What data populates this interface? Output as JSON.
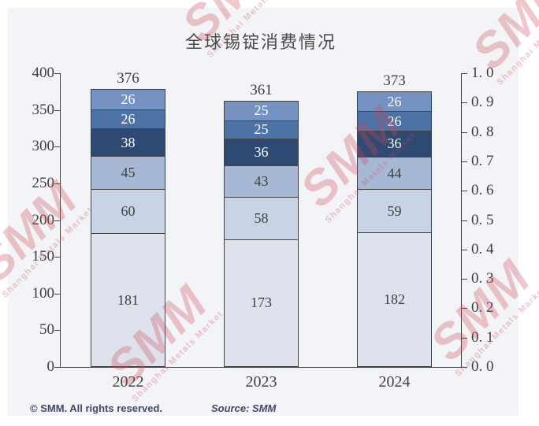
{
  "title": "全球锡锭消费情况",
  "chart_data": {
    "type": "bar",
    "subtype": "stacked",
    "title": "全球锡锭消费情况",
    "categories": [
      "2022",
      "2023",
      "2024"
    ],
    "series": [
      {
        "name": "layer-1-bottom",
        "values": [
          181,
          173,
          182
        ],
        "color": "#dde2ed",
        "text_color": "#3f3f3f"
      },
      {
        "name": "layer-2",
        "values": [
          60,
          58,
          59
        ],
        "color": "#c8d3e5",
        "text_color": "#3f3f3f"
      },
      {
        "name": "layer-3",
        "values": [
          45,
          43,
          44
        ],
        "color": "#a6b8d4",
        "text_color": "#3f3f3f"
      },
      {
        "name": "layer-4",
        "values": [
          38,
          36,
          36
        ],
        "color": "#2e4a73",
        "text_color": "#ffffff"
      },
      {
        "name": "layer-5",
        "values": [
          26,
          25,
          26
        ],
        "color": "#4d72a6",
        "text_color": "#ffffff"
      },
      {
        "name": "layer-6-top",
        "values": [
          26,
          25,
          26
        ],
        "color": "#7593c2",
        "text_color": "#ffffff"
      }
    ],
    "totals": [
      "376",
      "361",
      "373"
    ],
    "left_axis": {
      "min": 0,
      "max": 400,
      "ticks": [
        "400",
        "350",
        "300",
        "250",
        "200",
        "150",
        "100",
        "50",
        "0"
      ]
    },
    "right_axis": {
      "min": 0.0,
      "max": 1.0,
      "ticks": [
        "1. 0",
        "0. 9",
        "0. 8",
        "0. 7",
        "0. 6",
        "0. 5",
        "0. 4",
        "0. 3",
        "0. 2",
        "0. 1",
        "0. 0"
      ]
    },
    "grid": false,
    "legend": "none"
  },
  "footer": {
    "copyright": "© SMM. All rights reserved.",
    "source": "Source: SMM"
  },
  "watermark": {
    "big": "SMM",
    "small": "Shanghai Metals Market",
    "color": "#cd4854"
  },
  "colors": {
    "panel_background": "#f2f4f7",
    "axis": "#3f3f3f",
    "segment_border": "#424242",
    "footer_text": "#3e4a67"
  }
}
